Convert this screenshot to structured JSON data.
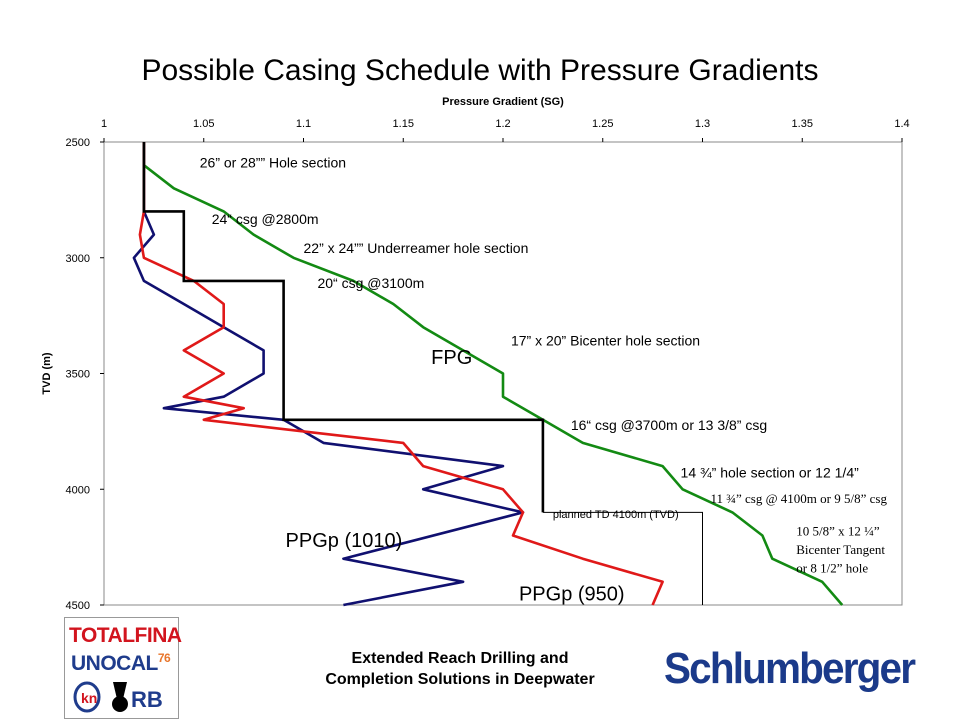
{
  "chart_data": {
    "type": "line",
    "title": "Possible Casing Schedule with Pressure Gradients",
    "xlabel": "Pressure Gradient  (SG)",
    "ylabel": "TVD  (m)",
    "xlim": [
      1,
      1.4
    ],
    "ylim": [
      2500,
      4500
    ],
    "y_inverted": true,
    "x_axis_position": "top",
    "grid": false,
    "x_ticks": [
      "1",
      "1.05",
      "1.1",
      "1.15",
      "1.2",
      "1.25",
      "1.3",
      "1.35",
      "1.4"
    ],
    "y_ticks": [
      "2500",
      "3000",
      "3500",
      "4000",
      "4500"
    ],
    "series": [
      {
        "name": "FPG",
        "color": "#138a13",
        "points": [
          [
            1.02,
            2500
          ],
          [
            1.02,
            2600
          ],
          [
            1.035,
            2700
          ],
          [
            1.06,
            2800
          ],
          [
            1.075,
            2900
          ],
          [
            1.095,
            3000
          ],
          [
            1.125,
            3100
          ],
          [
            1.145,
            3200
          ],
          [
            1.16,
            3300
          ],
          [
            1.18,
            3400
          ],
          [
            1.2,
            3500
          ],
          [
            1.2,
            3600
          ],
          [
            1.22,
            3700
          ],
          [
            1.24,
            3800
          ],
          [
            1.28,
            3900
          ],
          [
            1.29,
            4000
          ],
          [
            1.315,
            4100
          ],
          [
            1.33,
            4200
          ],
          [
            1.335,
            4300
          ],
          [
            1.36,
            4400
          ],
          [
            1.37,
            4500
          ]
        ]
      },
      {
        "name": "PPGp (1010)",
        "color": "#101070",
        "points": [
          [
            1.02,
            2500
          ],
          [
            1.02,
            2800
          ],
          [
            1.025,
            2900
          ],
          [
            1.015,
            3000
          ],
          [
            1.02,
            3100
          ],
          [
            1.04,
            3200
          ],
          [
            1.06,
            3300
          ],
          [
            1.08,
            3400
          ],
          [
            1.08,
            3500
          ],
          [
            1.06,
            3600
          ],
          [
            1.03,
            3650
          ],
          [
            1.09,
            3700
          ],
          [
            1.11,
            3800
          ],
          [
            1.2,
            3900
          ],
          [
            1.16,
            4000
          ],
          [
            1.21,
            4100
          ],
          [
            1.12,
            4300
          ],
          [
            1.18,
            4400
          ],
          [
            1.12,
            4500
          ]
        ]
      },
      {
        "name": "PPGp (950)",
        "color": "#e01919",
        "points": [
          [
            1.02,
            2500
          ],
          [
            1.02,
            2800
          ],
          [
            1.018,
            2900
          ],
          [
            1.02,
            3000
          ],
          [
            1.045,
            3100
          ],
          [
            1.06,
            3200
          ],
          [
            1.06,
            3300
          ],
          [
            1.04,
            3400
          ],
          [
            1.06,
            3500
          ],
          [
            1.04,
            3600
          ],
          [
            1.07,
            3650
          ],
          [
            1.05,
            3700
          ],
          [
            1.1,
            3750
          ],
          [
            1.15,
            3800
          ],
          [
            1.16,
            3900
          ],
          [
            1.2,
            4000
          ],
          [
            1.21,
            4100
          ],
          [
            1.205,
            4200
          ],
          [
            1.24,
            4300
          ],
          [
            1.28,
            4400
          ],
          [
            1.275,
            4500
          ]
        ]
      }
    ],
    "casing_schedule": {
      "color": "#000000",
      "points": [
        [
          1.02,
          2500
        ],
        [
          1.02,
          2800
        ],
        [
          1.04,
          2800
        ],
        [
          1.04,
          3100
        ],
        [
          1.09,
          3100
        ],
        [
          1.09,
          3700
        ],
        [
          1.22,
          3700
        ],
        [
          1.22,
          4100
        ]
      ]
    },
    "planned_td": {
      "points": [
        [
          1.22,
          4100
        ],
        [
          1.3,
          4100
        ],
        [
          1.3,
          4500
        ]
      ]
    },
    "annotations": [
      {
        "text": "26” or 28”” Hole section",
        "x": 1.048,
        "y": 2610,
        "style": "ann"
      },
      {
        "text": "24“ csg @2800m",
        "x": 1.054,
        "y": 2855,
        "style": "ann"
      },
      {
        "text": "22” x 24”” Underreamer hole section",
        "x": 1.1,
        "y": 2980,
        "style": "ann"
      },
      {
        "text": "20“ csg @3100m",
        "x": 1.107,
        "y": 3130,
        "style": "ann"
      },
      {
        "text": "17” x 20” Bicenter hole section",
        "x": 1.204,
        "y": 3380,
        "style": "ann"
      },
      {
        "text": "16“ csg @3700m or 13 3/8” csg",
        "x": 1.234,
        "y": 3745,
        "style": "ann"
      },
      {
        "text": "14 ¾” hole section or 12 1/4”",
        "x": 1.289,
        "y": 3950,
        "style": "ann"
      },
      {
        "text": "11 ¾” csg @ 4100m or 9 5/8” csg",
        "x": 1.304,
        "y": 4060,
        "style": "annserif"
      },
      {
        "text": "planned TD 4100m (TVD)",
        "x": 1.225,
        "y": 4125,
        "style": "annsmall"
      },
      {
        "text": "10 5/8” x 12 ¼”",
        "x": 1.347,
        "y": 4200,
        "style": "annserif"
      },
      {
        "text": "Bicenter Tangent",
        "x": 1.347,
        "y": 4280,
        "style": "annserif"
      },
      {
        "text": "or 8 1/2” hole",
        "x": 1.347,
        "y": 4360,
        "style": "annserif"
      },
      {
        "text": "FPG",
        "x": 1.164,
        "y": 3460,
        "style": "big"
      },
      {
        "text": "PPGp (1010)",
        "x": 1.091,
        "y": 4250,
        "style": "big"
      },
      {
        "text": "PPGp (950)",
        "x": 1.208,
        "y": 4480,
        "style": "big"
      }
    ]
  },
  "footer": {
    "line1": "Extended Reach Drilling and",
    "line2": "Completion Solutions in Deepwater",
    "logo_left": {
      "line1": "TOTALFINA",
      "line2": "UNOCAL",
      "line2_sup": "76",
      "line3": "RB"
    },
    "logo_right": "Schlumberger"
  }
}
